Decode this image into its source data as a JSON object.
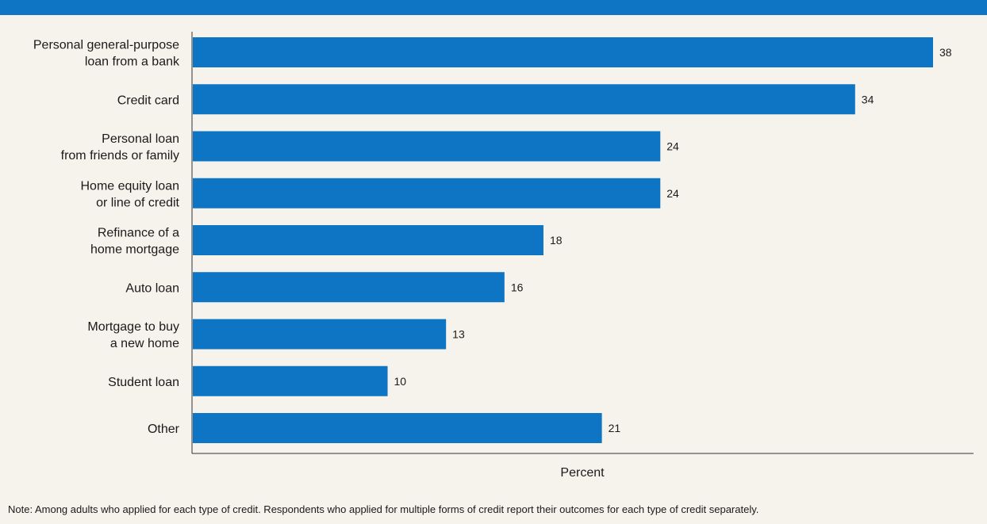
{
  "colors": {
    "header_band": "#0d75c3",
    "bar": "#0d75c3",
    "background": "#f6f3ec"
  },
  "chart_data": {
    "type": "bar",
    "orientation": "horizontal",
    "title": "",
    "xlabel": "Percent",
    "ylabel": "",
    "categories": [
      [
        "Personal general-purpose",
        "loan from a bank"
      ],
      [
        "Credit card"
      ],
      [
        "Personal loan",
        "from friends or family"
      ],
      [
        "Home equity loan",
        "or line of credit"
      ],
      [
        "Refinance of a",
        "home mortgage"
      ],
      [
        "Auto loan"
      ],
      [
        "Mortgage to buy",
        "a new home"
      ],
      [
        "Student loan"
      ],
      [
        "Other"
      ]
    ],
    "values": [
      38,
      34,
      24,
      24,
      18,
      16,
      13,
      10,
      21
    ],
    "xlim": [
      0,
      40
    ],
    "grid": false,
    "legend": "none",
    "data_labels": true
  },
  "note": "Note: Among adults who applied for each type of credit. Respondents who applied for multiple forms of credit report their outcomes for each type of credit separately."
}
